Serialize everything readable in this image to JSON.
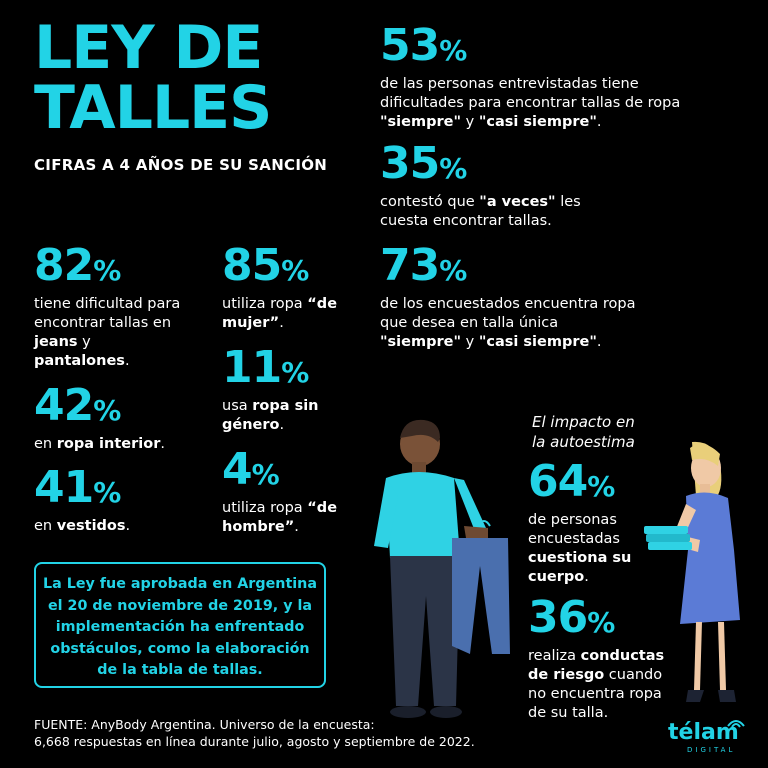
{
  "title": {
    "line1": "LEY DE",
    "line2": "TALLES"
  },
  "subtitle": "CIFRAS A 4 AÑOS DE SU SANCIÓN",
  "stats": {
    "s53": {
      "value": "53",
      "pct": "%",
      "text_a": "de las personas entrevistadas tiene dificultades para encontrar tallas de ropa ",
      "bold_a": "\"siempre\"",
      "text_b": " y ",
      "bold_b": "\"casi siempre\"",
      "text_c": "."
    },
    "s35": {
      "value": "35",
      "pct": "%",
      "text_a": "contestó que ",
      "bold_a": "\"a veces\"",
      "text_b": " les cuesta encontrar tallas."
    },
    "s73": {
      "value": "73",
      "pct": "%",
      "text_a": "de los encuestados encuentra ropa que desea en talla única ",
      "bold_a": "\"siempre\"",
      "text_b": " y ",
      "bold_b": "\"casi siempre\"",
      "text_c": "."
    },
    "s82": {
      "value": "82",
      "pct": "%",
      "text_a": "tiene dificultad para encontrar tallas en ",
      "bold_a": "jeans",
      "text_b": " y ",
      "bold_b": "pantalones",
      "text_c": "."
    },
    "s42": {
      "value": "42",
      "pct": "%",
      "text_a": "en ",
      "bold_a": "ropa interior",
      "text_b": "."
    },
    "s41": {
      "value": "41",
      "pct": "%",
      "text_a": "en ",
      "bold_a": "vestidos",
      "text_b": "."
    },
    "s85": {
      "value": "85",
      "pct": "%",
      "text_a": "utiliza ropa ",
      "bold_a": "“de mujer”",
      "text_b": "."
    },
    "s11": {
      "value": "11",
      "pct": "%",
      "text_a": "usa ",
      "bold_a": "ropa sin género",
      "text_b": "."
    },
    "s4": {
      "value": "4",
      "pct": "%",
      "text_a": "utiliza ropa ",
      "bold_a": "“de hombre”",
      "text_b": "."
    },
    "s64": {
      "value": "64",
      "pct": "%",
      "text_a": "de personas encuestadas ",
      "bold_a": "cuestiona su cuerpo",
      "text_b": "."
    },
    "s36": {
      "value": "36",
      "pct": "%",
      "text_a": "realiza ",
      "bold_a": "conductas de riesgo",
      "text_b": " cuando no encuentra ropa de su talla."
    }
  },
  "impact_label": "El impacto en la autoestima",
  "box_text": "La Ley fue aprobada en Argentina el 20 de noviembre de 2019, y la implementación ha enfrentado obstáculos, como la elaboración de la tabla de tallas.",
  "footer": {
    "line1": "FUENTE: AnyBody Argentina. Universo de la encuesta:",
    "line2": "6,668 respuestas en línea durante julio, agosto y septiembre de 2022."
  },
  "logo": {
    "word": "télam",
    "sub": "DIGITAL"
  },
  "colors": {
    "accent": "#22d3e6",
    "background": "#000000",
    "shirt": "#2fd2e4",
    "pants": "#2b3447",
    "dress": "#5b7bd6",
    "jeans": "#4a6fae"
  }
}
